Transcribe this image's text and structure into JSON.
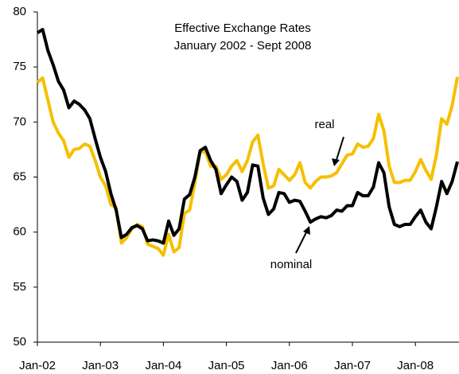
{
  "chart_data": {
    "type": "line",
    "title": "Effective Exchange Rates",
    "subtitle": "January 2002 - Sept 2008",
    "categories": [
      "Jan-02",
      null,
      null,
      null,
      null,
      null,
      null,
      null,
      null,
      null,
      null,
      null,
      "Jan-03",
      null,
      null,
      null,
      null,
      null,
      null,
      null,
      null,
      null,
      null,
      null,
      "Jan-04",
      null,
      null,
      null,
      null,
      null,
      null,
      null,
      null,
      null,
      null,
      null,
      "Jan-05",
      null,
      null,
      null,
      null,
      null,
      null,
      null,
      null,
      null,
      null,
      null,
      "Jan-06",
      null,
      null,
      null,
      null,
      null,
      null,
      null,
      null,
      null,
      null,
      null,
      "Jan-07",
      null,
      null,
      null,
      null,
      null,
      null,
      null,
      null,
      null,
      null,
      null,
      "Jan-08",
      null,
      null,
      null,
      null,
      null,
      null,
      null,
      null
    ],
    "series": [
      {
        "name": "real",
        "color": "#f5c000",
        "values": [
          73.6,
          74.0,
          72.0,
          70.0,
          69.0,
          68.3,
          66.8,
          67.5,
          67.6,
          68.0,
          67.8,
          66.5,
          65.0,
          64.2,
          62.5,
          62.2,
          59.0,
          59.5,
          60.3,
          60.7,
          60.5,
          58.9,
          58.7,
          58.5,
          57.9,
          59.8,
          58.2,
          58.6,
          61.7,
          62.0,
          64.5,
          67.3,
          67.3,
          66.0,
          66.0,
          64.8,
          65.2,
          66.0,
          66.5,
          65.5,
          66.5,
          68.2,
          68.8,
          66.2,
          64.0,
          64.2,
          65.7,
          65.2,
          64.7,
          65.2,
          66.3,
          64.5,
          64.0,
          64.6,
          65.0,
          65.0,
          65.1,
          65.4,
          66.2,
          67.0,
          67.1,
          68.0,
          67.7,
          67.8,
          68.5,
          70.7,
          69.2,
          66.0,
          64.5,
          64.5,
          64.7,
          64.7,
          65.5,
          66.6,
          65.6,
          64.8,
          67.0,
          70.3,
          69.8,
          71.5,
          74.1
        ]
      },
      {
        "name": "nominal",
        "color": "#000000",
        "values": [
          78.1,
          78.4,
          76.5,
          75.2,
          73.7,
          72.9,
          71.3,
          71.9,
          71.6,
          71.1,
          70.3,
          68.5,
          66.8,
          65.5,
          63.5,
          62.0,
          59.5,
          59.8,
          60.4,
          60.6,
          60.3,
          59.2,
          59.3,
          59.2,
          59.0,
          61.0,
          59.7,
          60.3,
          63.0,
          63.4,
          65.0,
          67.4,
          67.7,
          66.5,
          65.7,
          63.5,
          64.3,
          65.0,
          64.6,
          62.9,
          63.6,
          66.1,
          66.0,
          63.1,
          61.6,
          62.1,
          63.6,
          63.5,
          62.7,
          62.9,
          62.8,
          61.9,
          60.9,
          61.2,
          61.4,
          61.3,
          61.5,
          62.0,
          61.9,
          62.4,
          62.4,
          63.6,
          63.3,
          63.3,
          64.1,
          66.3,
          65.4,
          62.3,
          60.7,
          60.5,
          60.7,
          60.7,
          61.4,
          62.0,
          60.9,
          60.3,
          62.3,
          64.6,
          63.5,
          64.6,
          66.4
        ]
      }
    ],
    "ylim": [
      50,
      80
    ],
    "yticks": [
      50,
      55,
      60,
      65,
      70,
      75,
      80
    ]
  }
}
